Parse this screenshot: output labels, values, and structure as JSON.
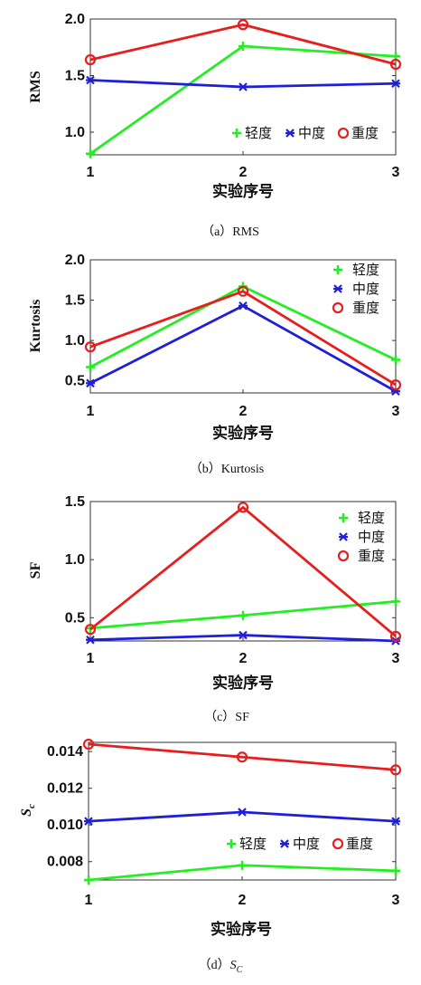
{
  "colors": {
    "light": "#22ee22",
    "medium": "#1f1fd9",
    "heavy": "#e61e1e"
  },
  "legend_labels": [
    "轻度",
    "中度",
    "重度"
  ],
  "chart_data": [
    {
      "type": "line",
      "ylabel": "RMS",
      "xlabel": "实验序号",
      "caption": "（a）RMS",
      "x": [
        1,
        2,
        3
      ],
      "xticks": [
        "1",
        "2",
        "3"
      ],
      "ylim": [
        0.8,
        2.0
      ],
      "yticks": [
        "1.0",
        "1.5",
        "2.0"
      ],
      "ytick_values": [
        1.0,
        1.5,
        2.0
      ],
      "legend": "bottom-right-horizontal",
      "series": [
        {
          "name": "轻度",
          "marker": "plus",
          "values": [
            0.81,
            1.76,
            1.67
          ]
        },
        {
          "name": "中度",
          "marker": "star",
          "values": [
            1.46,
            1.4,
            1.43
          ]
        },
        {
          "name": "重度",
          "marker": "circle",
          "values": [
            1.64,
            1.95,
            1.6
          ]
        }
      ]
    },
    {
      "type": "line",
      "ylabel": "Kurtosis",
      "xlabel": "实验序号",
      "caption": "（b）Kurtosis",
      "x": [
        1,
        2,
        3
      ],
      "xticks": [
        "1",
        "2",
        "3"
      ],
      "ylim": [
        0.35,
        2.0
      ],
      "yticks": [
        "0.5",
        "1.0",
        "1.5",
        "2.0"
      ],
      "ytick_values": [
        0.5,
        1.0,
        1.5,
        2.0
      ],
      "legend": "top-right-vertical",
      "series": [
        {
          "name": "轻度",
          "marker": "plus",
          "values": [
            0.67,
            1.67,
            0.76
          ]
        },
        {
          "name": "中度",
          "marker": "star",
          "values": [
            0.47,
            1.43,
            0.37
          ]
        },
        {
          "name": "重度",
          "marker": "circle",
          "values": [
            0.92,
            1.61,
            0.45
          ]
        }
      ]
    },
    {
      "type": "line",
      "ylabel": "SF",
      "xlabel": "实验序号",
      "caption": "（c）SF",
      "x": [
        1,
        2,
        3
      ],
      "xticks": [
        "1",
        "2",
        "3"
      ],
      "ylim": [
        0.3,
        1.5
      ],
      "yticks": [
        "0.5",
        "1.0",
        "1.5"
      ],
      "ytick_values": [
        0.5,
        1.0,
        1.5
      ],
      "legend": "top-right-vertical",
      "series": [
        {
          "name": "轻度",
          "marker": "plus",
          "values": [
            0.41,
            0.52,
            0.64
          ]
        },
        {
          "name": "中度",
          "marker": "star",
          "values": [
            0.31,
            0.35,
            0.3
          ]
        },
        {
          "name": "重度",
          "marker": "circle",
          "values": [
            0.4,
            1.45,
            0.34
          ]
        }
      ]
    },
    {
      "type": "line",
      "ylabel_main": "S",
      "ylabel_sub": "c",
      "xlabel": "实验序号",
      "caption_prefix": "（d）",
      "caption_main": "S",
      "caption_sub": "C",
      "x": [
        1,
        2,
        3
      ],
      "xticks": [
        "1",
        "2",
        "3"
      ],
      "ylim": [
        0.007,
        0.0145
      ],
      "yticks": [
        "0.008",
        "0.010",
        "0.012",
        "0.014"
      ],
      "ytick_values": [
        0.008,
        0.01,
        0.012,
        0.014
      ],
      "legend": "bottom-right-horizontal",
      "series": [
        {
          "name": "轻度",
          "marker": "plus",
          "values": [
            0.007,
            0.0078,
            0.0075
          ]
        },
        {
          "name": "中度",
          "marker": "star",
          "values": [
            0.0102,
            0.0107,
            0.0102
          ]
        },
        {
          "name": "重度",
          "marker": "circle",
          "values": [
            0.0144,
            0.0137,
            0.013
          ]
        }
      ]
    }
  ]
}
